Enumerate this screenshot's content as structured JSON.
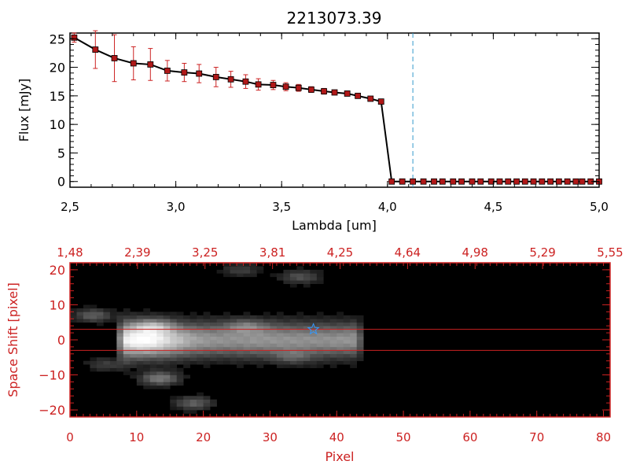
{
  "colors": {
    "axis_top": "#000000",
    "axis_bottom": "#cc2222",
    "error_bar": "#cc2222",
    "marker": "#b01818",
    "line": "#000000",
    "dashed_vline": "#3399cc",
    "star": "#3399ff",
    "band": "#cc2222",
    "image_bg": "#000000"
  },
  "chart_data": [
    {
      "type": "line",
      "title": "2213073.39",
      "xlabel": "Lambda [um]",
      "ylabel": "Flux [mJy]",
      "xlim": [
        2.5,
        5.0
      ],
      "ylim": [
        -1,
        26
      ],
      "x_ticks": [
        "2.5",
        "3.0",
        "3.5",
        "4.0",
        "4.5",
        "5.0"
      ],
      "y_ticks": [
        "0",
        "5",
        "10",
        "15",
        "20",
        "25"
      ],
      "dashed_vline_x": 4.12,
      "series": [
        {
          "x": [
            2.52,
            2.62,
            2.71,
            2.8,
            2.88,
            2.96,
            3.04,
            3.11,
            3.19,
            3.26,
            3.33,
            3.39,
            3.46,
            3.52,
            3.58,
            3.64,
            3.7,
            3.75,
            3.81,
            3.86,
            3.92,
            3.97,
            4.02,
            4.07,
            4.12,
            4.17,
            4.22,
            4.26,
            4.31,
            4.35,
            4.4,
            4.44,
            4.49,
            4.53,
            4.57,
            4.61,
            4.65,
            4.69,
            4.73,
            4.77,
            4.81,
            4.85,
            4.89,
            4.92,
            4.96,
            5.0
          ],
          "y": [
            25.2,
            23.1,
            21.6,
            20.7,
            20.5,
            19.4,
            19.1,
            18.9,
            18.3,
            17.9,
            17.5,
            17.0,
            16.9,
            16.6,
            16.4,
            16.1,
            15.8,
            15.6,
            15.4,
            15.0,
            14.5,
            14.0,
            0,
            0,
            0,
            0,
            0,
            0,
            0,
            0,
            0,
            0,
            0,
            0,
            0,
            0,
            0,
            0,
            0,
            0,
            0,
            0,
            0,
            0,
            0,
            0
          ],
          "yerr": [
            0.8,
            3.3,
            4.1,
            2.9,
            2.8,
            1.8,
            1.6,
            1.6,
            1.7,
            1.4,
            1.2,
            1.0,
            0.8,
            0.7,
            0.6,
            0.5,
            0.5,
            0.4,
            0.4,
            0.4,
            0.4,
            0.4,
            0,
            0,
            0,
            0,
            0,
            0,
            0,
            0,
            0,
            0,
            0,
            0,
            0,
            0,
            0,
            0,
            0,
            0,
            0,
            0,
            0,
            0,
            0,
            0
          ]
        }
      ]
    },
    {
      "type": "heatmap",
      "xlabel": "Pixel",
      "ylabel": "Space Shift [pixel]",
      "xlim": [
        0,
        81
      ],
      "ylim": [
        -22,
        22
      ],
      "x_ticks": [
        "0",
        "10",
        "20",
        "30",
        "40",
        "50",
        "60",
        "70",
        "80"
      ],
      "y_ticks": [
        "-20",
        "-10",
        "0",
        "10",
        "20"
      ],
      "top_axis_labels": [
        "1.48",
        "2.39",
        "3.25",
        "3.81",
        "4.25",
        "4.64",
        "4.98",
        "5.29",
        "5.55"
      ],
      "band_lines_y": [
        -3,
        3
      ],
      "star_marker": {
        "x": 36.5,
        "y": 3
      },
      "trace": {
        "x_start": 7,
        "x_end": 43,
        "y_center": 0,
        "width": 3.5,
        "peak_x": 10.5
      },
      "extra_blobs": [
        {
          "x": 13,
          "y": -11,
          "strength": 0.45
        },
        {
          "x": 18,
          "y": -18,
          "strength": 0.35
        },
        {
          "x": 3,
          "y": 7,
          "strength": 0.35
        },
        {
          "x": 25,
          "y": 20,
          "strength": 0.22
        },
        {
          "x": 34,
          "y": 18,
          "strength": 0.3
        },
        {
          "x": 26,
          "y": 4,
          "strength": 0.25
        },
        {
          "x": 12,
          "y": 4,
          "strength": 0.3
        },
        {
          "x": 5,
          "y": -7,
          "strength": 0.22
        },
        {
          "x": 33,
          "y": -5,
          "strength": 0.2
        }
      ]
    }
  ]
}
